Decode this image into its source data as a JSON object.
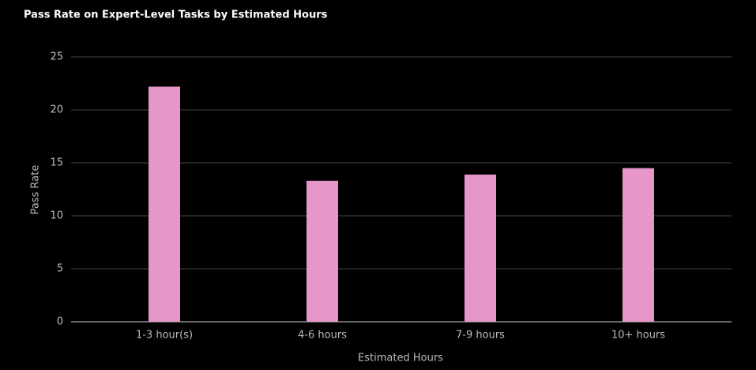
{
  "chart_data": {
    "type": "bar",
    "title": "Pass Rate on Expert-Level Tasks by Estimated Hours",
    "x_label": "Estimated Hours",
    "y_label": "Pass Rate",
    "categories": [
      "1-3 hour(s)",
      "4-6 hours",
      "7-9 hours",
      "10+ hours"
    ],
    "values": [
      22.2,
      13.3,
      13.9,
      14.5
    ],
    "color": "#e696c8",
    "ylim": [
      0,
      25
    ],
    "yticks": [
      0,
      5,
      10,
      15,
      20,
      25
    ],
    "grid": true
  }
}
